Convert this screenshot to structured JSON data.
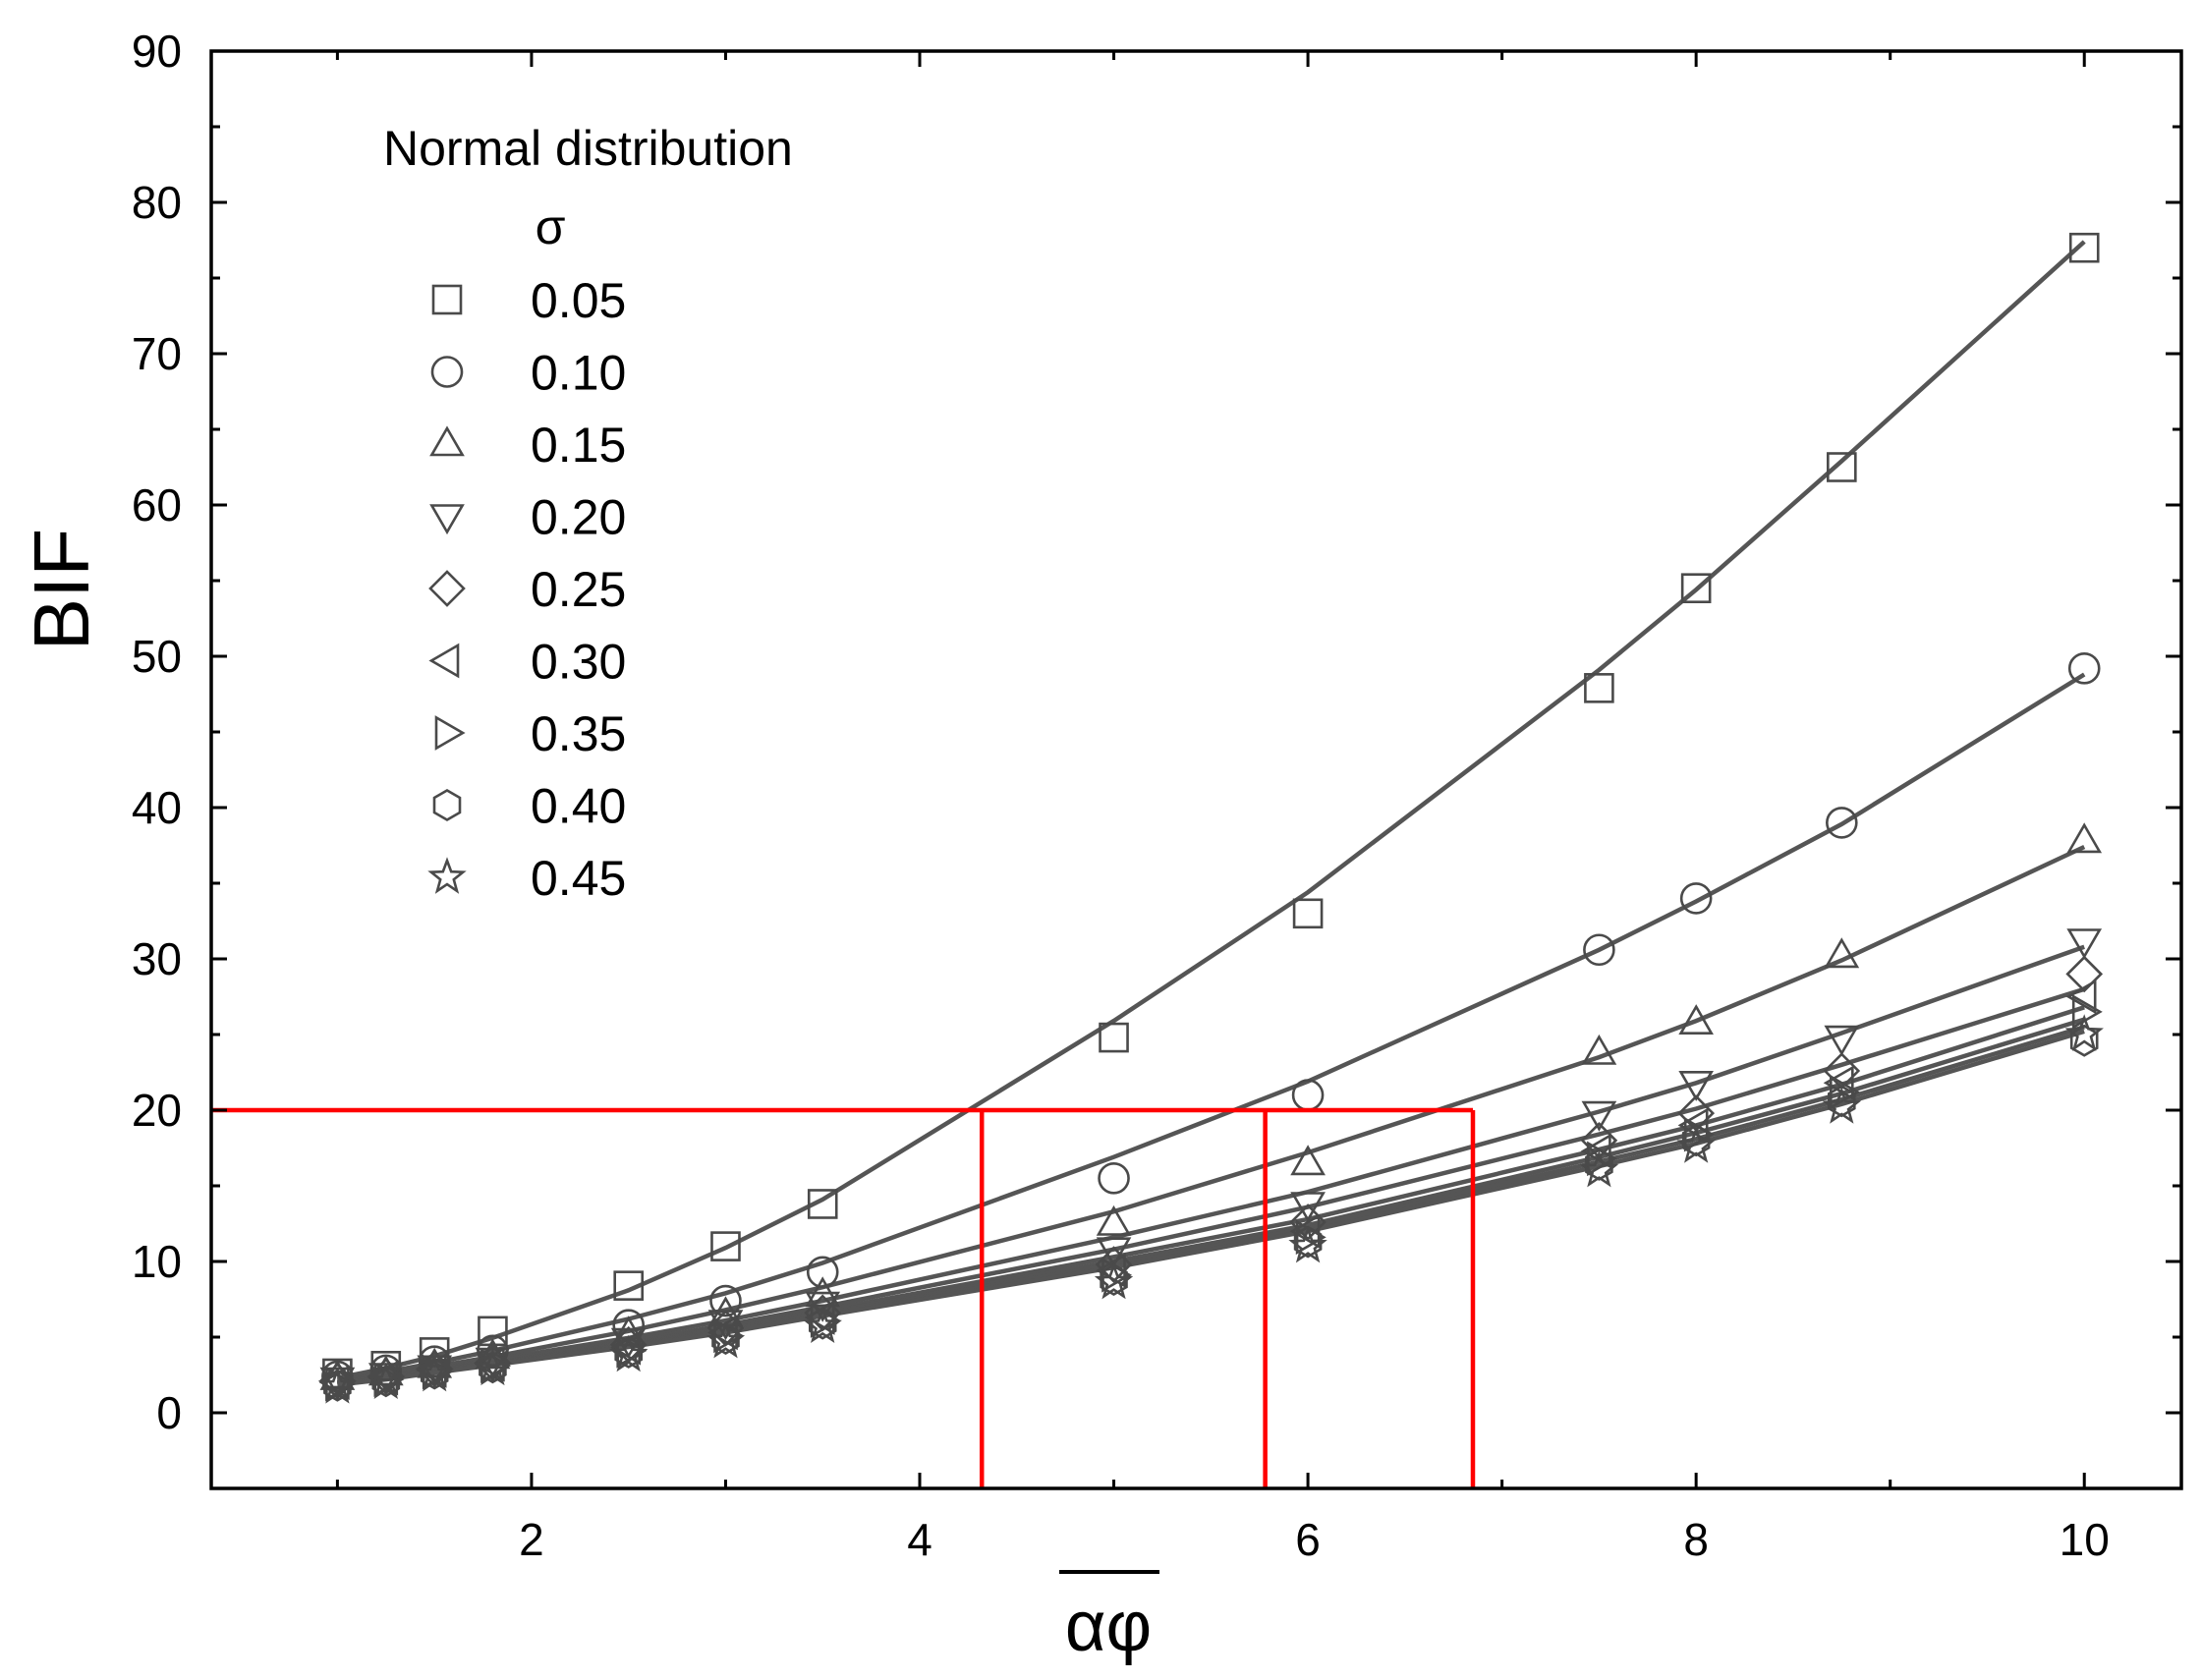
{
  "chart_data": {
    "type": "scatter",
    "title": "",
    "xlabel": "αφ",
    "ylabel": "BIF",
    "xlim": [
      0.35,
      10.5
    ],
    "ylim": [
      -5,
      90
    ],
    "xticks": [
      2,
      4,
      6,
      8,
      10
    ],
    "yticks": [
      0,
      10,
      20,
      30,
      40,
      50,
      60,
      70,
      80,
      90
    ],
    "grid": false,
    "legend": {
      "title": "Normal distribution",
      "subtitle": "σ",
      "placement": "top-left"
    },
    "x": [
      1.0,
      1.25,
      1.5,
      1.8,
      2.5,
      3.0,
      3.5,
      5.0,
      6.0,
      7.5,
      8.0,
      8.75,
      10.0
    ],
    "series": [
      {
        "name": "0.05",
        "marker": "square",
        "values": [
          2.6,
          3.1,
          4.0,
          5.4,
          8.4,
          11.0,
          13.8,
          24.8,
          33.0,
          47.9,
          54.5,
          62.5,
          77.0
        ],
        "fit": [
          2.3,
          2.95,
          3.75,
          4.95,
          8.1,
          10.9,
          14.1,
          25.9,
          34.4,
          49.1,
          54.4,
          62.9,
          77.4
        ]
      },
      {
        "name": "0.10",
        "marker": "circle",
        "values": [
          2.4,
          2.8,
          3.4,
          4.1,
          5.8,
          7.4,
          9.3,
          15.5,
          21.0,
          30.6,
          34.0,
          39.0,
          49.2
        ],
        "fit": [
          2.2,
          2.7,
          3.3,
          4.1,
          6.2,
          7.9,
          9.9,
          16.9,
          21.9,
          30.6,
          33.8,
          38.9,
          48.8
        ]
      },
      {
        "name": "0.15",
        "marker": "triangle-up",
        "values": [
          2.3,
          2.6,
          3.1,
          3.7,
          5.2,
          6.5,
          7.8,
          12.5,
          16.5,
          23.8,
          25.8,
          30.2,
          37.8
        ],
        "fit": [
          2.1,
          2.55,
          3.05,
          3.7,
          5.4,
          6.8,
          8.3,
          13.3,
          17.2,
          23.5,
          25.9,
          29.9,
          37.4
        ]
      },
      {
        "name": "0.20",
        "marker": "triangle-down",
        "values": [
          2.2,
          2.5,
          3.0,
          3.5,
          4.8,
          6.0,
          7.2,
          10.8,
          13.8,
          19.8,
          21.8,
          24.8,
          31.2
        ],
        "fit": [
          2.0,
          2.45,
          2.9,
          3.5,
          4.95,
          6.1,
          7.4,
          11.6,
          14.6,
          19.9,
          21.8,
          25.1,
          30.8
        ]
      },
      {
        "name": "0.25",
        "marker": "diamond",
        "values": [
          2.1,
          2.4,
          2.9,
          3.3,
          4.5,
          5.6,
          6.6,
          9.8,
          12.6,
          18.0,
          19.8,
          22.6,
          29.0
        ],
        "fit": [
          2.0,
          2.4,
          2.85,
          3.4,
          4.7,
          5.8,
          7.0,
          10.8,
          13.6,
          18.4,
          20.1,
          23.0,
          28.0
        ]
      },
      {
        "name": "0.30",
        "marker": "triangle-left",
        "values": [
          2.0,
          2.3,
          2.8,
          3.2,
          4.3,
          5.3,
          6.3,
          9.4,
          12.0,
          17.3,
          19.0,
          21.8,
          27.5
        ],
        "fit": [
          1.95,
          2.35,
          2.8,
          3.3,
          4.6,
          5.6,
          6.75,
          10.3,
          12.8,
          17.4,
          19.0,
          21.7,
          26.8
        ]
      },
      {
        "name": "0.35",
        "marker": "triangle-right",
        "values": [
          1.9,
          2.2,
          2.7,
          3.1,
          4.1,
          5.1,
          6.1,
          9.1,
          11.6,
          16.8,
          18.4,
          21.2,
          26.5
        ],
        "fit": [
          1.9,
          2.3,
          2.75,
          3.25,
          4.5,
          5.5,
          6.6,
          10.0,
          12.4,
          16.9,
          18.5,
          21.1,
          26.0
        ]
      },
      {
        "name": "0.40",
        "marker": "hexagon",
        "values": [
          1.8,
          2.1,
          2.6,
          3.0,
          4.0,
          4.9,
          5.9,
          8.8,
          11.3,
          16.4,
          18.0,
          20.6,
          24.6
        ],
        "fit": [
          1.9,
          2.25,
          2.7,
          3.2,
          4.4,
          5.4,
          6.5,
          9.8,
          12.2,
          16.6,
          18.1,
          20.7,
          25.5
        ]
      },
      {
        "name": "0.45",
        "marker": "star",
        "values": [
          1.7,
          2.0,
          2.5,
          2.9,
          3.8,
          4.7,
          5.7,
          8.6,
          11.0,
          16.0,
          17.6,
          20.2,
          25.0
        ],
        "fit": [
          1.85,
          2.2,
          2.65,
          3.15,
          4.35,
          5.3,
          6.4,
          9.6,
          12.0,
          16.3,
          17.8,
          20.4,
          25.2
        ]
      }
    ],
    "reference_lines": {
      "color": "#ff0000",
      "y_level": 20,
      "x_positions": [
        4.32,
        5.78,
        6.85
      ]
    },
    "colors": {
      "marker": "#4a4a4a",
      "fit": "#555555",
      "reference": "#ff0000",
      "axis": "#000000"
    }
  }
}
